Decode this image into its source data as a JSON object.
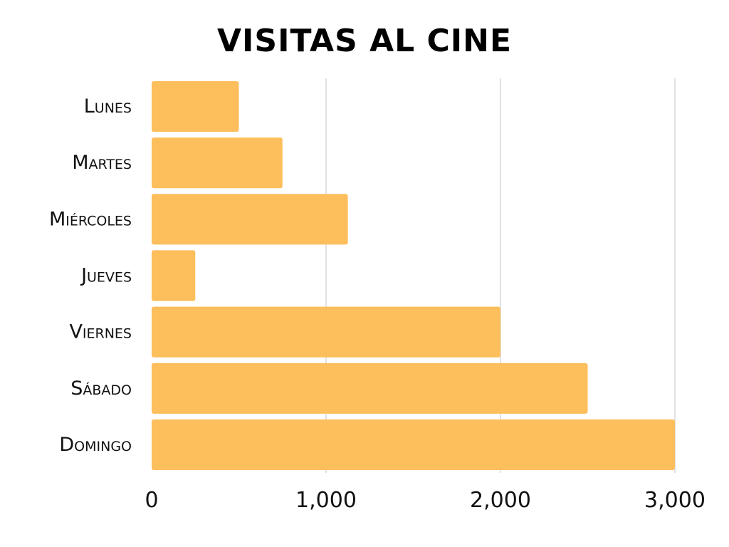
{
  "chart_data": {
    "type": "bar",
    "orientation": "horizontal",
    "title": "VISITAS AL CINE",
    "categories": [
      "Lunes",
      "Martes",
      "Miércoles",
      "Jueves",
      "Viernes",
      "Sábado",
      "Domingo"
    ],
    "values": [
      500,
      750,
      1125,
      250,
      2000,
      2500,
      3000
    ],
    "xlim": [
      0,
      3000
    ],
    "x_ticks": [
      0,
      1000,
      2000,
      3000
    ],
    "x_tick_labels": [
      "0",
      "1,000",
      "2,000",
      "3,000"
    ],
    "xlabel": "",
    "ylabel": "",
    "grid": true,
    "bar_color": "#FDBE5C",
    "grid_color": "#d9d9d9"
  }
}
